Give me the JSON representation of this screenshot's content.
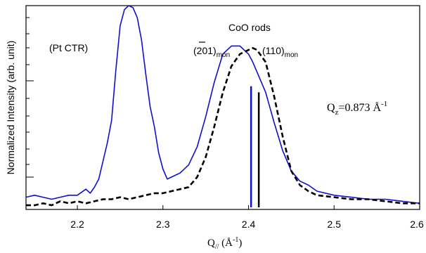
{
  "chart_data": {
    "type": "line",
    "title": "",
    "xlabel": {
      "main": "Q",
      "sub": "//",
      "paren_open": " (Å",
      "sup": "-1",
      "paren_close": ")"
    },
    "ylabel": "Normalized Intensity (arb. unit)",
    "xlim": [
      2.14,
      2.6
    ],
    "ylim": [
      0,
      1
    ],
    "x_ticks": [
      2.2,
      2.3,
      2.4,
      2.5,
      2.6
    ],
    "x_tick_labels": [
      "2.2",
      "2.3",
      "2.4",
      "2.5",
      "2.6"
    ],
    "grid": false,
    "legend": "none",
    "series": [
      {
        "style": "solid",
        "color": "#1010cc",
        "x": [
          2.14,
          2.15,
          2.16,
          2.17,
          2.18,
          2.19,
          2.2,
          2.21,
          2.215,
          2.22,
          2.225,
          2.23,
          2.235,
          2.24,
          2.245,
          2.25,
          2.255,
          2.26,
          2.265,
          2.27,
          2.275,
          2.28,
          2.285,
          2.29,
          2.295,
          2.3,
          2.305,
          2.31,
          2.32,
          2.33,
          2.34,
          2.35,
          2.36,
          2.37,
          2.38,
          2.39,
          2.4,
          2.405,
          2.41,
          2.42,
          2.43,
          2.44,
          2.45,
          2.46,
          2.47,
          2.48,
          2.5,
          2.52,
          2.54,
          2.56,
          2.58,
          2.6
        ],
        "y": [
          0.05,
          0.06,
          0.05,
          0.04,
          0.05,
          0.06,
          0.06,
          0.09,
          0.07,
          0.1,
          0.14,
          0.23,
          0.32,
          0.43,
          0.68,
          0.9,
          0.98,
          1.0,
          0.99,
          0.94,
          0.83,
          0.66,
          0.5,
          0.4,
          0.27,
          0.19,
          0.14,
          0.15,
          0.17,
          0.21,
          0.3,
          0.45,
          0.62,
          0.76,
          0.8,
          0.8,
          0.76,
          0.72,
          0.67,
          0.57,
          0.42,
          0.28,
          0.18,
          0.13,
          0.11,
          0.08,
          0.06,
          0.05,
          0.04,
          0.04,
          0.03,
          0.02
        ]
      },
      {
        "style": "dashed",
        "color": "#000000",
        "x": [
          2.14,
          2.15,
          2.16,
          2.17,
          2.18,
          2.19,
          2.2,
          2.21,
          2.22,
          2.23,
          2.24,
          2.25,
          2.26,
          2.27,
          2.28,
          2.29,
          2.3,
          2.31,
          2.32,
          2.33,
          2.34,
          2.35,
          2.36,
          2.37,
          2.38,
          2.39,
          2.4,
          2.405,
          2.41,
          2.415,
          2.42,
          2.43,
          2.44,
          2.45,
          2.46,
          2.47,
          2.48,
          2.5,
          2.52,
          2.54,
          2.56,
          2.58,
          2.6
        ],
        "y": [
          0.01,
          0.01,
          0.02,
          0.01,
          0.03,
          0.02,
          0.03,
          0.02,
          0.03,
          0.04,
          0.04,
          0.05,
          0.04,
          0.05,
          0.06,
          0.07,
          0.07,
          0.08,
          0.09,
          0.1,
          0.15,
          0.25,
          0.4,
          0.57,
          0.7,
          0.76,
          0.78,
          0.79,
          0.78,
          0.75,
          0.72,
          0.55,
          0.35,
          0.18,
          0.11,
          0.08,
          0.06,
          0.05,
          0.04,
          0.04,
          0.03,
          0.02,
          0.02
        ]
      }
    ],
    "markers": [
      {
        "x": 2.403,
        "y_top": 0.6,
        "color": "#1010cc",
        "style": "solid"
      },
      {
        "x": 2.412,
        "y_top": 0.57,
        "color": "#000000",
        "style": "solid"
      }
    ],
    "annotations": {
      "pt_ctr": "(Pt CTR)",
      "coo_rods": "CoO rods",
      "peak1": {
        "main": "(201)",
        "overbar": "2",
        "sub": "mon"
      },
      "peak2": {
        "main": "(110)",
        "sub": "mon"
      },
      "qz": {
        "main": "Q",
        "sub": "z",
        "eq": "=0.873 Å",
        "sup": "-1"
      }
    }
  }
}
